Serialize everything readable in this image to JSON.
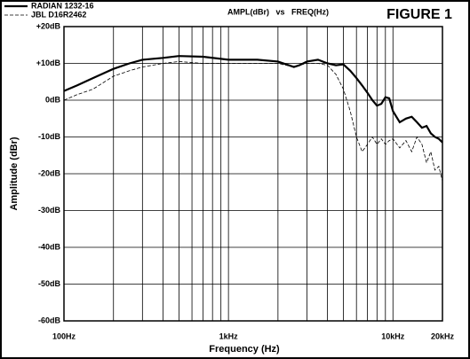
{
  "chart_data": {
    "type": "line",
    "figure_label": "FIGURE 1",
    "title": "AMPL(dBr)   vs   FREQ(Hz)",
    "x_label": "Frequency (Hz)",
    "y_label": "Amplitude (dBr)",
    "x_scale": "log",
    "grid": true,
    "x": [
      100,
      120,
      150,
      200,
      250,
      300,
      400,
      500,
      700,
      1000,
      1500,
      2000,
      2500,
      2700,
      3000,
      3500,
      4000,
      4500,
      5000,
      5500,
      6000,
      6500,
      7000,
      7500,
      8000,
      8500,
      9000,
      9500,
      10000,
      11000,
      12000,
      13000,
      14000,
      15000,
      16000,
      17000,
      18000,
      19000,
      20000
    ],
    "series": [
      {
        "name": "RADIAN 1232-16",
        "color": "#000000",
        "dashed": false,
        "values": [
          2.5,
          4,
          6,
          8.5,
          10,
          11,
          11.5,
          12,
          11.8,
          11,
          11,
          10.5,
          9,
          9.5,
          10.5,
          11,
          10,
          9.5,
          9.7,
          8,
          6,
          4,
          2,
          0,
          -1.5,
          -1,
          0.8,
          0.5,
          -3,
          -6,
          -5,
          -4.5,
          -6,
          -7.5,
          -7,
          -9,
          -10,
          -10.5,
          -11.5
        ]
      },
      {
        "name": "JBL D16R2462",
        "color": "#000000",
        "dashed": true,
        "values": [
          0,
          1.5,
          3,
          6.5,
          8,
          9,
          10,
          10.5,
          10,
          10,
          10,
          10,
          9,
          9.5,
          10,
          10,
          9.5,
          7,
          3,
          -3,
          -10,
          -14,
          -12,
          -10,
          -12,
          -10.5,
          -12,
          -11,
          -10.5,
          -13,
          -11,
          -14,
          -10,
          -12,
          -17,
          -14,
          -19,
          -18,
          -22
        ]
      }
    ],
    "xlim": [
      100,
      20000
    ],
    "xticks": [
      {
        "value": 100,
        "label": "100Hz"
      },
      {
        "value": 1000,
        "label": "1kHz"
      },
      {
        "value": 10000,
        "label": "10kHz"
      },
      {
        "value": 20000,
        "label": "20kHz"
      }
    ],
    "xgrid": [
      200,
      300,
      400,
      500,
      600,
      700,
      800,
      900,
      2000,
      3000,
      4000,
      5000,
      6000,
      7000,
      8000,
      9000
    ],
    "ylim": [
      -60,
      20
    ],
    "yticks": [
      {
        "value": -60,
        "label": "-60dB"
      },
      {
        "value": -50,
        "label": "-50dB"
      },
      {
        "value": -40,
        "label": "-40dB"
      },
      {
        "value": -30,
        "label": "-30dB"
      },
      {
        "value": -20,
        "label": "-20dB"
      },
      {
        "value": -10,
        "label": "-10dB"
      },
      {
        "value": 0,
        "label": "0dB"
      },
      {
        "value": 10,
        "label": "+10dB"
      },
      {
        "value": 20,
        "label": "+20dB"
      }
    ]
  }
}
